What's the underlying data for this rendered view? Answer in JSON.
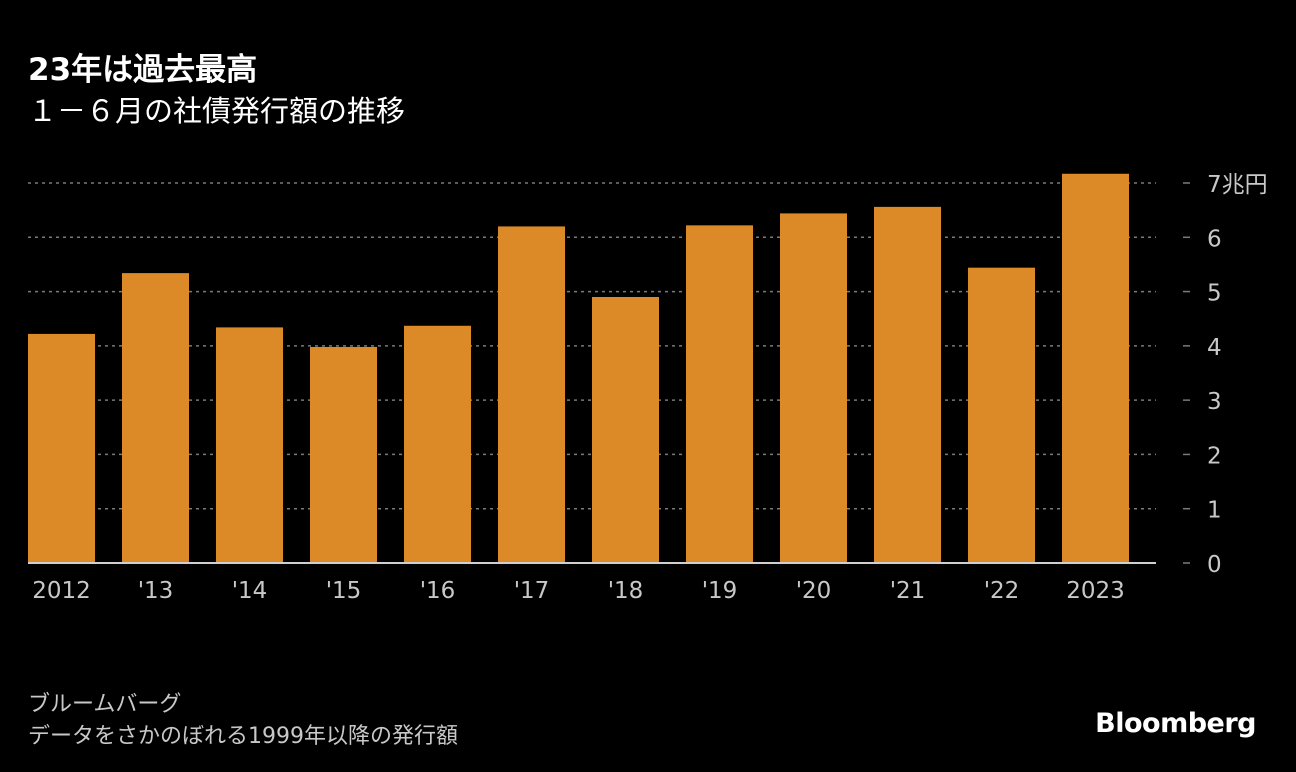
{
  "title": "23年は過去最高",
  "subtitle": "１－６月の社債発行額の推移",
  "source": "ブルームバーグ",
  "note": "データをさかのぼれる1999年以降の発行額",
  "logo": "Bloomberg",
  "colors": {
    "background": "#000000",
    "bar": "#DC8A28",
    "grid": "#7a7a7a",
    "text": "#ffffff",
    "muted": "#c8c8c8"
  },
  "chart_data": {
    "type": "bar",
    "categories": [
      "2012",
      "'13",
      "'14",
      "'15",
      "'16",
      "'17",
      "'18",
      "'19",
      "'20",
      "'21",
      "'22",
      "2023"
    ],
    "values": [
      4.22,
      5.34,
      4.34,
      3.98,
      4.37,
      6.2,
      4.9,
      6.22,
      6.44,
      6.56,
      5.44,
      7.17
    ],
    "y_tick_labels": [
      "0",
      "1",
      "2",
      "3",
      "4",
      "5",
      "6",
      "7兆円"
    ],
    "ylim": [
      0,
      7
    ],
    "grid": true,
    "y_axis_side": "right"
  }
}
